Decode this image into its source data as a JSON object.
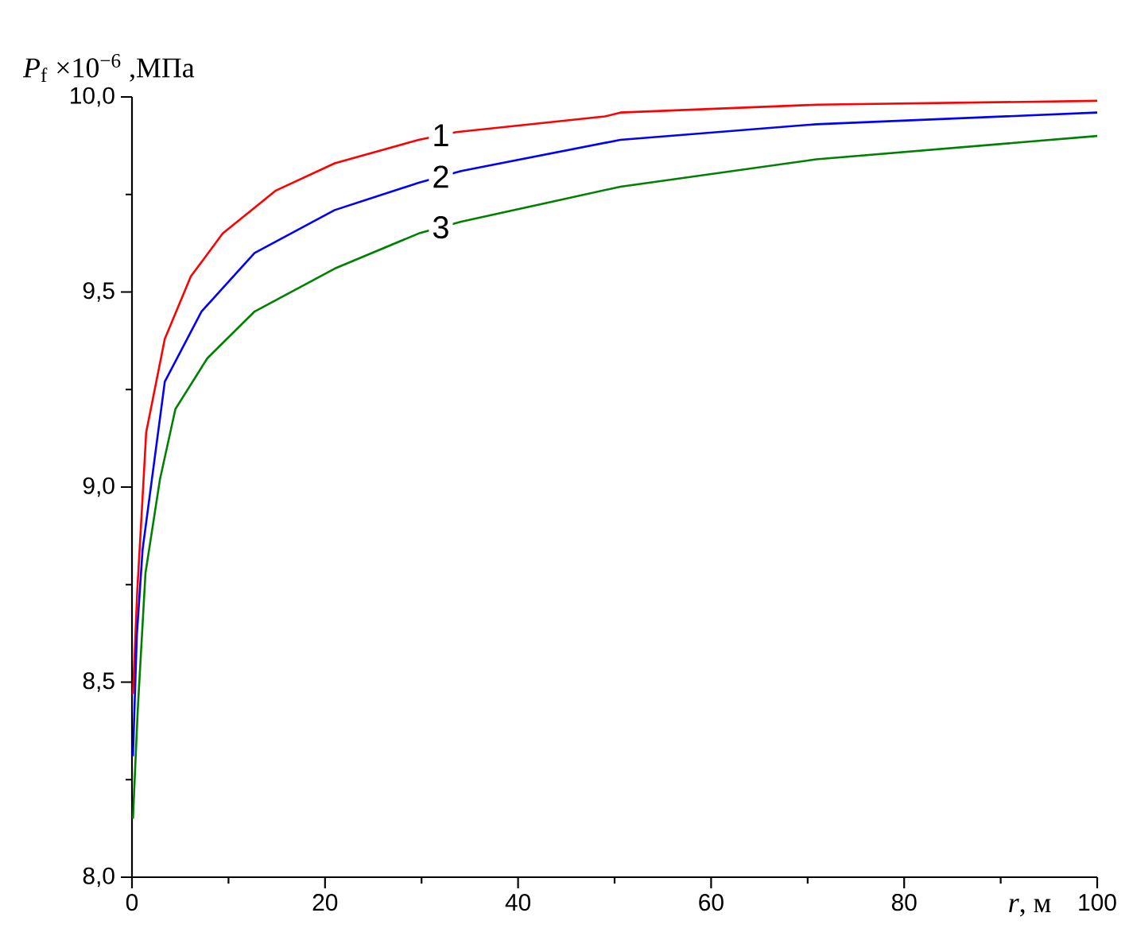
{
  "chart_data": {
    "type": "line",
    "xlabel": "*r*, м",
    "ylabel": "*P*$_{f}$ ×10$^{−6}$ ,МПа",
    "xlim": [
      0,
      100
    ],
    "ylim": [
      8.0,
      10.0
    ],
    "xticks": [
      0,
      20,
      40,
      60,
      80,
      100
    ],
    "yticks": [
      {
        "value": 8.0,
        "label": "8,0"
      },
      {
        "value": 8.5,
        "label": "8,5"
      },
      {
        "value": 9.0,
        "label": "9,0"
      },
      {
        "value": 9.5,
        "label": "9,5"
      },
      {
        "value": 10.0,
        "label": "10,0"
      }
    ],
    "series": [
      {
        "name": "1",
        "color": "#ff0000",
        "x": [
          0.1,
          0.54,
          1.09,
          1.47,
          3.4,
          6.1,
          9.4,
          14.9,
          21.0,
          29.7,
          33.6,
          49.0,
          50.6,
          70.9,
          100
        ],
        "values": [
          8.47,
          8.73,
          8.97,
          9.14,
          9.38,
          9.54,
          9.65,
          9.76,
          9.83,
          9.89,
          9.91,
          9.95,
          9.96,
          9.98,
          9.99
        ]
      },
      {
        "name": "2",
        "color": "#0000ff",
        "x": [
          0.1,
          0.5,
          1.1,
          3.4,
          7.2,
          12.7,
          21.0,
          29.7,
          34.1,
          50.6,
          70.9,
          100
        ],
        "values": [
          8.31,
          8.62,
          8.84,
          9.27,
          9.45,
          9.6,
          9.71,
          9.78,
          9.81,
          9.89,
          9.93,
          9.96
        ]
      },
      {
        "name": "3",
        "color": "#008000",
        "x": [
          0.1,
          0.6,
          1.4,
          2.9,
          4.5,
          7.8,
          12.7,
          21.0,
          29.7,
          34.1,
          50.6,
          70.9,
          100
        ],
        "values": [
          8.15,
          8.43,
          8.78,
          9.02,
          9.2,
          9.33,
          9.45,
          9.56,
          9.65,
          9.68,
          9.77,
          9.84,
          9.9
        ]
      }
    ]
  }
}
